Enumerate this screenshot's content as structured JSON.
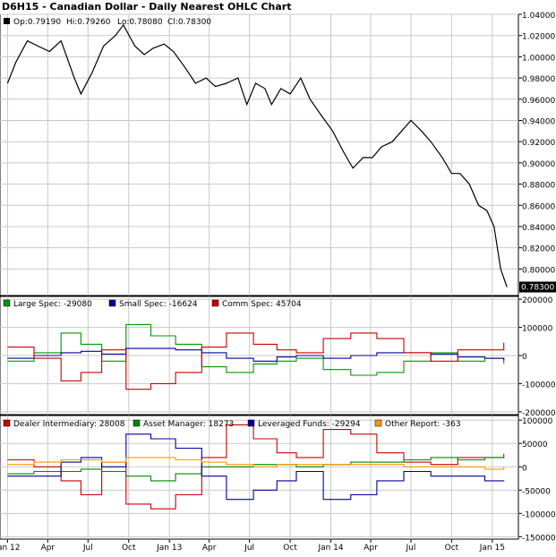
{
  "title": "D6H15 - Canadian Dollar - Daily Nearest OHLC Chart",
  "colors": {
    "price": "#000000",
    "large_spec": "#009900",
    "small_spec": "#000099",
    "comm_spec": "#cc0000",
    "dealer": "#cc0000",
    "asset_manager": "#008800",
    "leveraged": "#000099",
    "other_report": "#ff9900",
    "grid": "#c8c8c8"
  },
  "chart_data": [
    {
      "type": "line",
      "panel": "price",
      "title": "D6H15 - Canadian Dollar - Daily Nearest OHLC Chart",
      "ohlc_label": {
        "open": "Op:0.79190",
        "high": "Hi:0.79260",
        "low": "Lo:0.78080",
        "close": "Cl:0.78300"
      },
      "last_value_label": "0.78300",
      "y_ticks": [
        "1.04000",
        "1.02000",
        "1.00000",
        "0.98000",
        "0.96000",
        "0.94000",
        "0.92000",
        "0.90000",
        "0.88000",
        "0.86000",
        "0.84000",
        "0.82000",
        "0.80000"
      ],
      "ylim": [
        0.775,
        1.04
      ],
      "grid": true,
      "x_ticks": [
        "Jan 12",
        "Apr",
        "Jul",
        "Oct",
        "Jan 13",
        "Apr",
        "Jul",
        "Oct",
        "Jan 14",
        "Apr",
        "Jul",
        "Oct",
        "Jan 15"
      ],
      "x": [
        "2012-01-01",
        "2012-01-20",
        "2012-02-15",
        "2012-03-10",
        "2012-04-05",
        "2012-05-01",
        "2012-05-31",
        "2012-06-15",
        "2012-07-10",
        "2012-08-05",
        "2012-09-01",
        "2012-09-19",
        "2012-10-15",
        "2012-11-05",
        "2012-11-25",
        "2012-12-20",
        "2013-01-10",
        "2013-02-05",
        "2013-03-01",
        "2013-03-25",
        "2013-04-15",
        "2013-05-10",
        "2013-06-05",
        "2013-06-25",
        "2013-07-15",
        "2013-08-05",
        "2013-08-20",
        "2013-09-10",
        "2013-10-01",
        "2013-10-25",
        "2013-11-15",
        "2013-12-10",
        "2014-01-05",
        "2014-01-30",
        "2014-02-20",
        "2014-03-15",
        "2014-04-05",
        "2014-04-25",
        "2014-05-20",
        "2014-06-10",
        "2014-07-01",
        "2014-07-25",
        "2014-08-15",
        "2014-09-10",
        "2014-10-01",
        "2014-10-20",
        "2014-11-10",
        "2014-12-01",
        "2014-12-20",
        "2015-01-05",
        "2015-01-20",
        "2015-02-03"
      ],
      "y": [
        0.975,
        0.995,
        1.015,
        1.01,
        1.005,
        1.015,
        0.98,
        0.965,
        0.985,
        1.01,
        1.02,
        1.03,
        1.01,
        1.002,
        1.008,
        1.012,
        1.005,
        0.99,
        0.975,
        0.98,
        0.972,
        0.975,
        0.98,
        0.955,
        0.975,
        0.97,
        0.955,
        0.97,
        0.965,
        0.98,
        0.96,
        0.945,
        0.93,
        0.91,
        0.895,
        0.905,
        0.905,
        0.915,
        0.92,
        0.93,
        0.94,
        0.93,
        0.92,
        0.905,
        0.89,
        0.89,
        0.88,
        0.86,
        0.855,
        0.84,
        0.8,
        0.783
      ]
    },
    {
      "type": "line",
      "panel": "cot_legacy",
      "legend": [
        "Large Spec: -29080",
        "Small Spec: -16624",
        "Comm Spec: 45704"
      ],
      "y_ticks": [
        "200000",
        "100000",
        "0",
        "-100000",
        "-200000"
      ],
      "ylim": [
        -210000,
        210000
      ],
      "grid": true,
      "x": [
        "2012-01-01",
        "2012-03-01",
        "2012-05-01",
        "2012-06-15",
        "2012-08-01",
        "2012-09-25",
        "2012-11-20",
        "2013-01-15",
        "2013-03-15",
        "2013-05-10",
        "2013-07-10",
        "2013-09-01",
        "2013-10-15",
        "2013-12-15",
        "2014-02-15",
        "2014-04-15",
        "2014-06-15",
        "2014-08-15",
        "2014-10-15",
        "2014-12-15",
        "2015-01-27"
      ],
      "series": [
        {
          "name": "Large Spec: -29080",
          "color_key": "large_spec",
          "values": [
            -20000,
            10000,
            80000,
            40000,
            -20000,
            110000,
            70000,
            40000,
            -40000,
            -60000,
            -30000,
            -20000,
            -10000,
            -50000,
            -70000,
            -60000,
            -20000,
            10000,
            -20000,
            -10000,
            -29080
          ]
        },
        {
          "name": "Small Spec: -16624",
          "color_key": "small_spec",
          "values": [
            -10000,
            0,
            10000,
            15000,
            5000,
            25000,
            25000,
            20000,
            10000,
            -10000,
            -20000,
            -5000,
            0,
            -10000,
            0,
            10000,
            10000,
            5000,
            -5000,
            -10000,
            -16624
          ]
        },
        {
          "name": "Comm Spec: 45704",
          "color_key": "comm_spec",
          "values": [
            30000,
            -10000,
            -90000,
            -60000,
            20000,
            -120000,
            -100000,
            -60000,
            30000,
            80000,
            40000,
            20000,
            10000,
            60000,
            80000,
            60000,
            10000,
            -20000,
            20000,
            20000,
            45704
          ]
        }
      ]
    },
    {
      "type": "line",
      "panel": "cot_disaggregated",
      "legend": [
        "Dealer Intermediary: 28008",
        "Asset Manager: 18273",
        "Leveraged Funds: -29294",
        "Other Report: -363"
      ],
      "y_ticks": [
        "100000",
        "50000",
        "0",
        "-50000",
        "-100000",
        "-150000"
      ],
      "ylim": [
        -155000,
        110000
      ],
      "grid": true,
      "x": [
        "2012-01-01",
        "2012-03-01",
        "2012-05-01",
        "2012-06-15",
        "2012-08-01",
        "2012-09-25",
        "2012-11-20",
        "2013-01-15",
        "2013-03-15",
        "2013-05-10",
        "2013-07-10",
        "2013-09-01",
        "2013-10-15",
        "2013-12-15",
        "2014-02-15",
        "2014-04-15",
        "2014-06-15",
        "2014-08-15",
        "2014-10-15",
        "2014-12-15",
        "2015-01-27"
      ],
      "series": [
        {
          "name": "Dealer Intermediary: 28008",
          "color_key": "dealer",
          "values": [
            15000,
            0,
            -30000,
            -60000,
            10000,
            -80000,
            -90000,
            -60000,
            20000,
            90000,
            60000,
            30000,
            20000,
            80000,
            70000,
            30000,
            10000,
            5000,
            20000,
            20000,
            28008
          ]
        },
        {
          "name": "Asset Manager: 18273",
          "color_key": "asset_manager",
          "values": [
            -15000,
            -10000,
            -10000,
            -5000,
            -10000,
            -20000,
            -30000,
            -15000,
            0,
            0,
            5000,
            5000,
            0,
            5000,
            10000,
            10000,
            15000,
            20000,
            15000,
            20000,
            18273
          ]
        },
        {
          "name": "Leveraged Funds: -29294",
          "color_key": "leveraged",
          "values": [
            -20000,
            -20000,
            10000,
            20000,
            0,
            70000,
            60000,
            40000,
            -20000,
            -70000,
            -50000,
            -30000,
            -10000,
            -70000,
            -60000,
            -30000,
            -10000,
            -20000,
            -20000,
            -30000,
            -29294
          ]
        },
        {
          "name": "Other Report: -363",
          "color_key": "other_report",
          "values": [
            5000,
            10000,
            15000,
            15000,
            10000,
            20000,
            20000,
            15000,
            10000,
            5000,
            0,
            5000,
            5000,
            5000,
            5000,
            5000,
            0,
            0,
            0,
            -5000,
            -363
          ]
        }
      ]
    }
  ]
}
